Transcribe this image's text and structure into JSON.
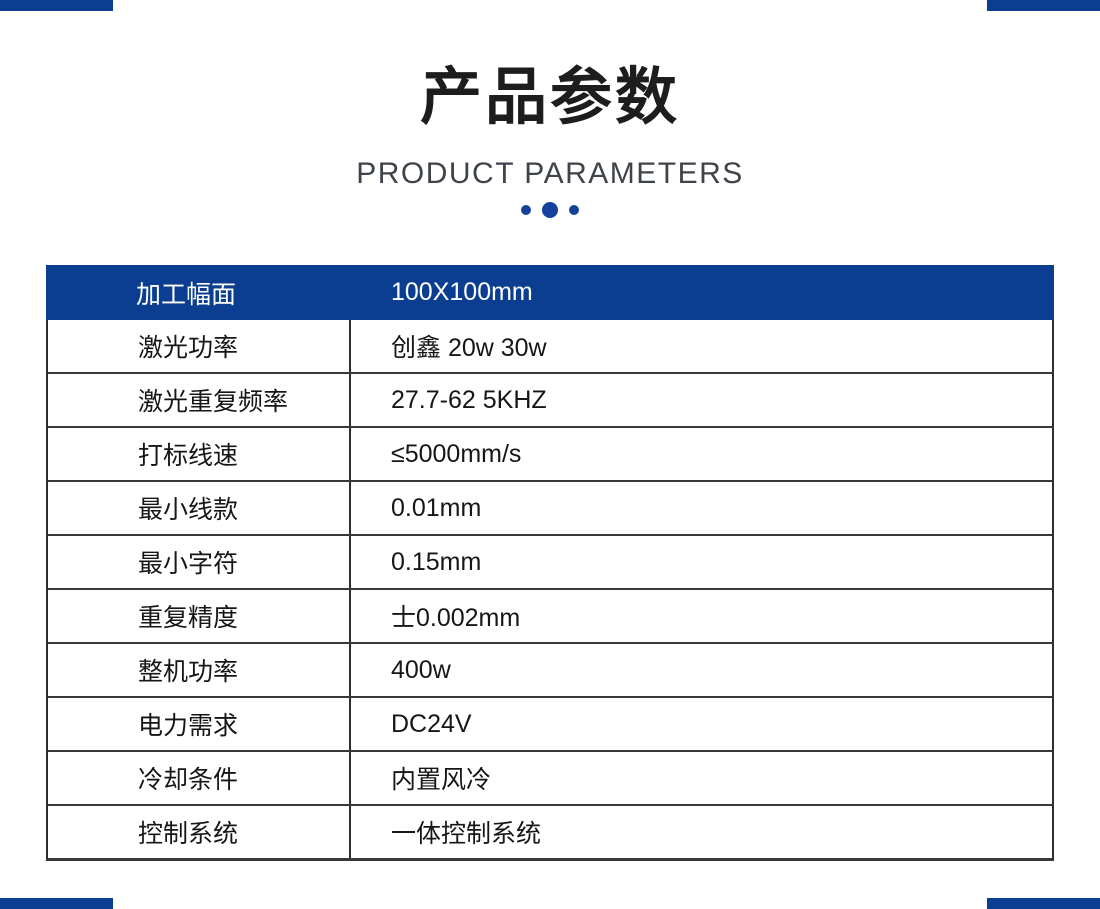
{
  "page": {
    "accent_blue": "#0b3e90",
    "dot_blue": "#16419c",
    "text_black": "#1d1d1d",
    "subtitle_gray": "#3f434b"
  },
  "header": {
    "title": "产品参数",
    "subtitle": "PRODUCT PARAMETERS"
  },
  "table": {
    "header_row": {
      "label": "加工幅面",
      "value": "100X100mm"
    },
    "rows": [
      {
        "label": "激光功率",
        "value": "创鑫 20w 30w"
      },
      {
        "label": "激光重复频率",
        "value": "27.7-62 5KHZ"
      },
      {
        "label": "打标线速",
        "value": "≤5000mm/s"
      },
      {
        "label": "最小线款",
        "value": "0.01mm"
      },
      {
        "label": "最小字符",
        "value": "0.15mm"
      },
      {
        "label": "重复精度",
        "value": "士0.002mm"
      },
      {
        "label": "整机功率",
        "value": "400w"
      },
      {
        "label": "电力需求",
        "value": "DC24V"
      },
      {
        "label": "冷却条件",
        "value": "内置风冷"
      },
      {
        "label": "控制系统",
        "value": "一体控制系统"
      }
    ]
  }
}
